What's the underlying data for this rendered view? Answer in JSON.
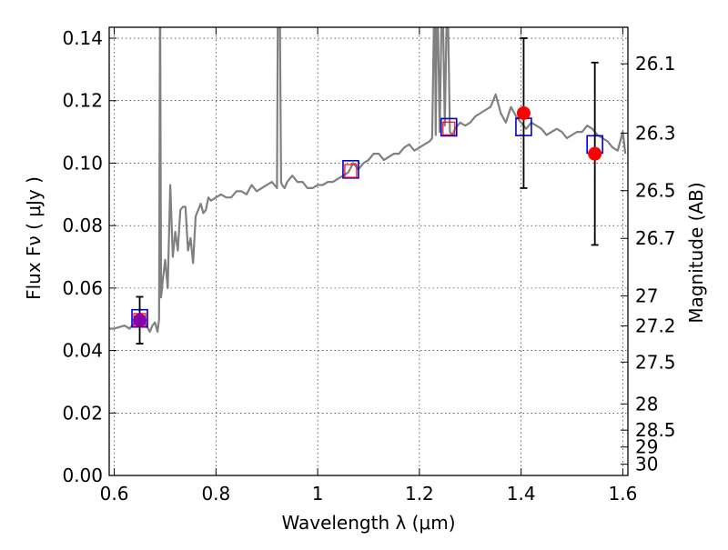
{
  "chart_data": {
    "type": "line",
    "xlabel": "Wavelength  λ (μm)",
    "ylabel": "Flux  Fν  ( μJy )",
    "ylabel_right": "Magnitude (AB)",
    "xlim": [
      0.59,
      1.61
    ],
    "ylim": [
      0.0,
      0.1435
    ],
    "grid": true,
    "x_ticks": [
      {
        "value": 0.6,
        "label": "0.6"
      },
      {
        "value": 0.8,
        "label": "0.8"
      },
      {
        "value": 1.0,
        "label": "1"
      },
      {
        "value": 1.2,
        "label": "1.2"
      },
      {
        "value": 1.4,
        "label": "1.4"
      },
      {
        "value": 1.6,
        "label": "1.6"
      }
    ],
    "y_ticks": [
      {
        "value": 0.0,
        "label": "0.00"
      },
      {
        "value": 0.02,
        "label": "0.02"
      },
      {
        "value": 0.04,
        "label": "0.04"
      },
      {
        "value": 0.06,
        "label": "0.06"
      },
      {
        "value": 0.08,
        "label": "0.08"
      },
      {
        "value": 0.1,
        "label": "0.10"
      },
      {
        "value": 0.12,
        "label": "0.12"
      },
      {
        "value": 0.14,
        "label": "0.14"
      }
    ],
    "mag_ticks": [
      {
        "label": "26.1",
        "flux": 0.1318
      },
      {
        "label": "26.3",
        "flux": 0.1096
      },
      {
        "label": "26.5",
        "flux": 0.0912
      },
      {
        "label": "26.7",
        "flux": 0.0759
      },
      {
        "label": "27",
        "flux": 0.0575
      },
      {
        "label": "27.2",
        "flux": 0.0479
      },
      {
        "label": "27.5",
        "flux": 0.0363
      },
      {
        "label": "28",
        "flux": 0.0229
      },
      {
        "label": "28.5",
        "flux": 0.0145
      },
      {
        "label": "29",
        "flux": 0.0091
      },
      {
        "label": "30",
        "flux": 0.0036
      }
    ],
    "series": [
      {
        "color": "#808080",
        "x": [
          0.59,
          0.6,
          0.62,
          0.63,
          0.64,
          0.65,
          0.66,
          0.67,
          0.675,
          0.68,
          0.685,
          0.688,
          0.69,
          0.692,
          0.695,
          0.7,
          0.705,
          0.71,
          0.715,
          0.72,
          0.725,
          0.73,
          0.735,
          0.74,
          0.745,
          0.75,
          0.755,
          0.76,
          0.765,
          0.77,
          0.775,
          0.78,
          0.785,
          0.79,
          0.8,
          0.81,
          0.82,
          0.83,
          0.84,
          0.85,
          0.86,
          0.87,
          0.88,
          0.89,
          0.9,
          0.91,
          0.92,
          0.922,
          0.925,
          0.928,
          0.93,
          0.935,
          0.94,
          0.95,
          0.96,
          0.97,
          0.98,
          0.99,
          1.0,
          1.01,
          1.02,
          1.03,
          1.04,
          1.05,
          1.06,
          1.07,
          1.08,
          1.09,
          1.1,
          1.11,
          1.12,
          1.13,
          1.14,
          1.15,
          1.16,
          1.17,
          1.18,
          1.19,
          1.2,
          1.21,
          1.22,
          1.225,
          1.23,
          1.232,
          1.235,
          1.24,
          1.245,
          1.25,
          1.255,
          1.26,
          1.265,
          1.27,
          1.28,
          1.29,
          1.3,
          1.31,
          1.32,
          1.33,
          1.34,
          1.35,
          1.36,
          1.37,
          1.38,
          1.39,
          1.4,
          1.41,
          1.42,
          1.43,
          1.44,
          1.45,
          1.46,
          1.47,
          1.48,
          1.49,
          1.5,
          1.51,
          1.52,
          1.53,
          1.54,
          1.55,
          1.56,
          1.57,
          1.58,
          1.59,
          1.6,
          1.605
        ],
        "y": [
          0.047,
          0.047,
          0.048,
          0.047,
          0.049,
          0.048,
          0.049,
          0.046,
          0.048,
          0.049,
          0.046,
          0.05,
          0.16,
          0.057,
          0.062,
          0.069,
          0.06,
          0.093,
          0.07,
          0.078,
          0.072,
          0.085,
          0.086,
          0.086,
          0.072,
          0.076,
          0.068,
          0.083,
          0.085,
          0.087,
          0.084,
          0.085,
          0.089,
          0.088,
          0.089,
          0.09,
          0.089,
          0.089,
          0.091,
          0.091,
          0.09,
          0.093,
          0.091,
          0.092,
          0.093,
          0.094,
          0.092,
          0.16,
          0.16,
          0.094,
          0.093,
          0.092,
          0.094,
          0.096,
          0.094,
          0.094,
          0.092,
          0.092,
          0.093,
          0.093,
          0.094,
          0.094,
          0.095,
          0.096,
          0.097,
          0.1,
          0.098,
          0.1,
          0.101,
          0.103,
          0.103,
          0.101,
          0.102,
          0.103,
          0.103,
          0.105,
          0.106,
          0.104,
          0.105,
          0.106,
          0.107,
          0.108,
          0.16,
          0.109,
          0.16,
          0.11,
          0.16,
          0.112,
          0.16,
          0.11,
          0.109,
          0.111,
          0.113,
          0.112,
          0.113,
          0.115,
          0.116,
          0.117,
          0.118,
          0.122,
          0.116,
          0.113,
          0.118,
          0.115,
          0.113,
          0.111,
          0.113,
          0.112,
          0.111,
          0.109,
          0.11,
          0.111,
          0.11,
          0.108,
          0.109,
          0.11,
          0.11,
          0.112,
          0.111,
          0.109,
          0.108,
          0.107,
          0.105,
          0.104,
          0.11,
          0.103
        ]
      }
    ],
    "model_points": [
      {
        "x": 0.65,
        "y": 0.0503,
        "color": "#0000cc"
      },
      {
        "x": 1.065,
        "y": 0.098,
        "color": "#0000cc"
      },
      {
        "x": 1.258,
        "y": 0.1115,
        "color": "#0000cc"
      },
      {
        "x": 1.405,
        "y": 0.1116,
        "color": "#0000cc"
      },
      {
        "x": 1.545,
        "y": 0.106,
        "color": "#0000cc"
      }
    ],
    "model_points_small": [
      {
        "x": 0.65,
        "y": 0.0498,
        "color": "#ff0000"
      },
      {
        "x": 1.065,
        "y": 0.0975,
        "color": "#ff0000"
      },
      {
        "x": 1.258,
        "y": 0.1111,
        "color": "#ff0000"
      }
    ],
    "observed": [
      {
        "x": 0.65,
        "y": 0.0497,
        "err_lo": 0.0075,
        "err_hi": 0.0075,
        "color": "#8800aa"
      },
      {
        "x": 1.405,
        "y": 0.116,
        "err_lo": 0.024,
        "err_hi": 0.024,
        "color": "#ff0000"
      },
      {
        "x": 1.545,
        "y": 0.103,
        "err_lo": 0.0292,
        "err_hi": 0.0292,
        "color": "#ff0000"
      }
    ]
  }
}
